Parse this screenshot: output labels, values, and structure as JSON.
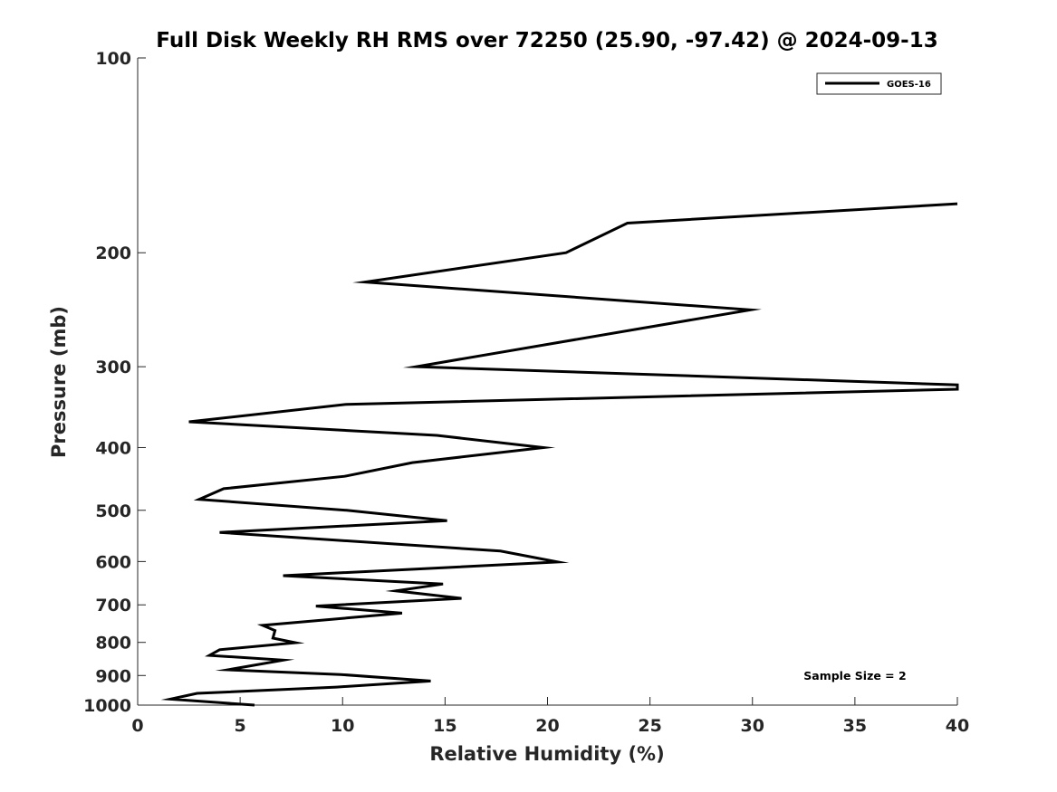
{
  "chart_data": {
    "type": "line",
    "title": "Full Disk Weekly RH RMS over 72250 (25.90, -97.42) @ 2024-09-13",
    "xlabel": "Relative Humidity (%)",
    "ylabel": "Pressure (mb)",
    "xlim": [
      0,
      40
    ],
    "ylim": [
      100,
      1000
    ],
    "yscale": "log",
    "yreverse": true,
    "grid": false,
    "xticks": [
      0,
      5,
      10,
      15,
      20,
      25,
      30,
      35,
      40
    ],
    "yticks": [
      100,
      200,
      300,
      400,
      500,
      600,
      700,
      800,
      900,
      1000
    ],
    "legend": {
      "position": "top-right",
      "entries": [
        "GOES-16"
      ]
    },
    "annotation": "Sample Size = 2",
    "series": [
      {
        "name": "GOES-16",
        "color": "#000000",
        "points": [
          [
            40.0,
            168
          ],
          [
            23.9,
            180
          ],
          [
            20.9,
            200
          ],
          [
            11.1,
            222
          ],
          [
            29.9,
            245
          ],
          [
            13.6,
            300
          ],
          [
            40.0,
            320
          ],
          [
            40.0,
            325
          ],
          [
            10.2,
            343
          ],
          [
            2.5,
            365
          ],
          [
            14.6,
            383
          ],
          [
            19.8,
            400
          ],
          [
            13.4,
            422
          ],
          [
            10.1,
            443
          ],
          [
            4.2,
            463
          ],
          [
            3.0,
            481
          ],
          [
            10.2,
            500
          ],
          [
            15.1,
            519
          ],
          [
            4.0,
            541
          ],
          [
            17.7,
            578
          ],
          [
            20.5,
            601
          ],
          [
            7.1,
            631
          ],
          [
            14.9,
            650
          ],
          [
            12.6,
            666
          ],
          [
            15.8,
            684
          ],
          [
            8.7,
            703
          ],
          [
            12.9,
            721
          ],
          [
            6.1,
            753
          ],
          [
            6.7,
            767
          ],
          [
            6.6,
            788
          ],
          [
            7.7,
            801
          ],
          [
            4.0,
            821
          ],
          [
            3.5,
            838
          ],
          [
            7.1,
            852
          ],
          [
            4.4,
            882
          ],
          [
            9.9,
            897
          ],
          [
            14.3,
            918
          ],
          [
            9.7,
            938
          ],
          [
            2.9,
            959
          ],
          [
            1.6,
            979
          ],
          [
            5.7,
            1000
          ]
        ]
      }
    ]
  }
}
